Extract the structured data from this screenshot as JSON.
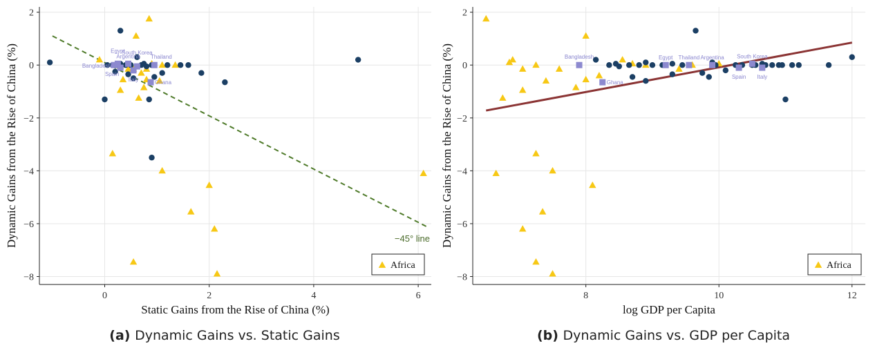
{
  "colors": {
    "africa": "#f7c815",
    "other": "#1b3f64",
    "highlight": "#8c89cf",
    "reference_line": "#4e7a29",
    "regression_line": "#8b3434",
    "grid": "#e6e6e6"
  },
  "chart_data": [
    {
      "type": "scatter",
      "caption_prefix": "(a)",
      "caption": "Dynamic Gains vs. Static Gains",
      "xlabel": "Static Gains from the Rise of China  (%)",
      "ylabel": "Dynamic Gains from the Rise of China  (%)",
      "xlim": [
        -1.25,
        6.25
      ],
      "ylim": [
        -8.3,
        2.2
      ],
      "xticks": [
        0,
        2,
        4,
        6
      ],
      "yticks": [
        2,
        0,
        -2,
        -4,
        -6,
        -8
      ],
      "grid": true,
      "legend": {
        "position": "bottom-right",
        "entries": [
          {
            "marker": "triangle",
            "label": "Africa"
          }
        ]
      },
      "reference_line": {
        "label": "−45° line",
        "points": [
          [
            -1.0,
            1.1
          ],
          [
            6.2,
            -6.15
          ]
        ]
      },
      "series": [
        {
          "marker": "triangle",
          "points": [
            [
              0.85,
              1.75
            ],
            [
              0.6,
              1.1
            ],
            [
              -0.1,
              0.2
            ],
            [
              0.3,
              -0.05
            ],
            [
              0.35,
              -0.55
            ],
            [
              0.45,
              -0.15
            ],
            [
              0.3,
              -0.95
            ],
            [
              0.55,
              -0.15
            ],
            [
              0.65,
              -1.25
            ],
            [
              0.75,
              -0.85
            ],
            [
              0.8,
              -0.15
            ],
            [
              0.9,
              0.05
            ],
            [
              1.1,
              0.0
            ],
            [
              1.35,
              0.0
            ],
            [
              1.05,
              -0.6
            ],
            [
              0.8,
              -0.55
            ],
            [
              0.15,
              -3.35
            ],
            [
              1.1,
              -4.0
            ],
            [
              2.0,
              -4.55
            ],
            [
              1.65,
              -5.55
            ],
            [
              2.1,
              -6.2
            ],
            [
              0.55,
              -7.45
            ],
            [
              2.15,
              -7.9
            ],
            [
              6.1,
              -4.1
            ],
            [
              0.7,
              -0.3
            ]
          ]
        },
        {
          "marker": "circle",
          "points": [
            [
              -1.05,
              0.1
            ],
            [
              0.3,
              1.3
            ],
            [
              0.62,
              0.3
            ],
            [
              0.0,
              -1.3
            ],
            [
              0.85,
              -1.3
            ],
            [
              0.9,
              -3.5
            ],
            [
              4.85,
              0.2
            ],
            [
              2.3,
              -0.65
            ],
            [
              1.85,
              -0.3
            ],
            [
              1.45,
              0.0
            ],
            [
              1.6,
              0.0
            ],
            [
              1.2,
              0.0
            ],
            [
              1.1,
              -0.3
            ],
            [
              0.5,
              0.0
            ],
            [
              0.55,
              -0.5
            ],
            [
              0.2,
              -0.25
            ],
            [
              0.15,
              0.0
            ],
            [
              0.45,
              -0.35
            ],
            [
              0.8,
              -0.05
            ],
            [
              0.9,
              0.0
            ],
            [
              0.95,
              -0.45
            ],
            [
              0.3,
              0.05
            ],
            [
              0.4,
              0.0
            ],
            [
              0.7,
              0.0
            ],
            [
              0.75,
              0.05
            ],
            [
              0.05,
              0.0
            ],
            [
              0.25,
              0.0
            ],
            [
              0.95,
              0.0
            ]
          ]
        },
        {
          "marker": "square",
          "points": [
            [
              0.25,
              0.05,
              "Egypt"
            ],
            [
              0.45,
              0.05,
              "Argentina"
            ],
            [
              0.62,
              -0.05,
              "South Korea"
            ],
            [
              0.95,
              0.0,
              "Thailand"
            ],
            [
              0.18,
              0.0,
              "Bangladesh"
            ],
            [
              0.3,
              -0.1,
              "Spain"
            ],
            [
              0.55,
              -0.2,
              "Italy"
            ],
            [
              0.88,
              -0.65,
              "Ghana"
            ]
          ]
        }
      ]
    },
    {
      "type": "scatter",
      "caption_prefix": "(b)",
      "caption": "Dynamic Gains vs. GDP per Capita",
      "xlabel": "log GDP per Capita",
      "ylabel": "Dynamic Gains from the Rise of China  (%)",
      "xlim": [
        6.3,
        12.2
      ],
      "ylim": [
        -8.3,
        2.2
      ],
      "xticks": [
        8,
        10,
        12
      ],
      "yticks": [
        2,
        0,
        -2,
        -4,
        -6,
        -8
      ],
      "grid": true,
      "legend": {
        "position": "bottom-right",
        "entries": [
          {
            "marker": "triangle",
            "label": "Africa"
          }
        ]
      },
      "regression_line": {
        "points": [
          [
            6.5,
            -1.72
          ],
          [
            12.0,
            0.85
          ]
        ]
      },
      "series": [
        {
          "marker": "triangle",
          "points": [
            [
              6.5,
              1.75
            ],
            [
              6.85,
              0.1
            ],
            [
              6.9,
              0.2
            ],
            [
              6.75,
              -1.25
            ],
            [
              7.05,
              -0.15
            ],
            [
              7.25,
              0.0
            ],
            [
              7.05,
              -0.95
            ],
            [
              7.4,
              -0.6
            ],
            [
              7.6,
              -0.15
            ],
            [
              7.85,
              -0.85
            ],
            [
              8.0,
              1.1
            ],
            [
              8.0,
              -0.55
            ],
            [
              8.2,
              -0.4
            ],
            [
              8.55,
              0.2
            ],
            [
              8.7,
              0.05
            ],
            [
              8.9,
              0.0
            ],
            [
              9.4,
              -0.15
            ],
            [
              9.6,
              0.0
            ],
            [
              10.0,
              0.05
            ],
            [
              7.25,
              -3.35
            ],
            [
              7.5,
              -4.0
            ],
            [
              8.1,
              -4.55
            ],
            [
              6.65,
              -4.1
            ],
            [
              7.35,
              -5.55
            ],
            [
              7.05,
              -6.2
            ],
            [
              7.25,
              -7.45
            ],
            [
              7.5,
              -7.9
            ]
          ]
        },
        {
          "marker": "circle",
          "points": [
            [
              7.9,
              0.0
            ],
            [
              8.15,
              0.2
            ],
            [
              8.35,
              0.0
            ],
            [
              8.5,
              -0.05
            ],
            [
              8.65,
              0.0
            ],
            [
              8.8,
              0.0
            ],
            [
              8.9,
              0.1
            ],
            [
              9.0,
              0.0
            ],
            [
              9.15,
              0.0
            ],
            [
              9.3,
              0.05
            ],
            [
              9.45,
              0.0
            ],
            [
              9.65,
              1.3
            ],
            [
              9.75,
              -0.3
            ],
            [
              9.85,
              -0.45
            ],
            [
              9.95,
              0.0
            ],
            [
              10.1,
              -0.2
            ],
            [
              10.25,
              0.0
            ],
            [
              10.35,
              0.0
            ],
            [
              10.5,
              0.0
            ],
            [
              10.65,
              0.05
            ],
            [
              10.8,
              0.0
            ],
            [
              10.9,
              0.0
            ],
            [
              11.0,
              -1.3
            ],
            [
              11.1,
              0.0
            ],
            [
              11.2,
              0.0
            ],
            [
              11.65,
              0.0
            ],
            [
              12.0,
              0.3
            ],
            [
              8.9,
              -0.6
            ],
            [
              8.7,
              -0.45
            ],
            [
              8.45,
              0.05
            ],
            [
              9.3,
              -0.35
            ],
            [
              9.55,
              0.0
            ],
            [
              9.9,
              0.1
            ],
            [
              10.55,
              0.0
            ],
            [
              10.7,
              0.0
            ],
            [
              10.95,
              0.0
            ]
          ]
        },
        {
          "marker": "square",
          "points": [
            [
              7.9,
              0.0,
              "Bangladesh"
            ],
            [
              9.2,
              0.0,
              "Egypt"
            ],
            [
              9.55,
              0.0,
              "Thailand"
            ],
            [
              9.9,
              0.0,
              "Argentina"
            ],
            [
              10.5,
              0.05,
              "South Korea"
            ],
            [
              10.3,
              -0.1,
              "Spain"
            ],
            [
              10.65,
              -0.1,
              "Italy"
            ],
            [
              8.25,
              -0.65,
              "Ghana"
            ]
          ]
        }
      ]
    }
  ]
}
